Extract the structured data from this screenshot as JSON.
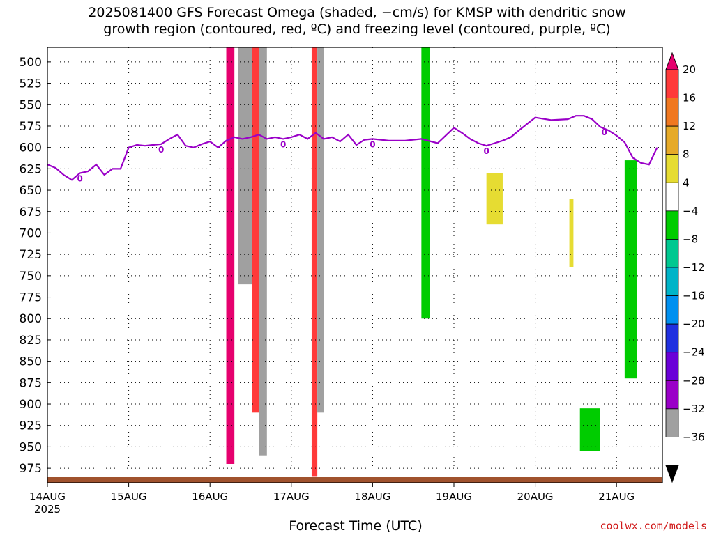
{
  "chart_data": {
    "type": "heatmap",
    "title": "2025081400 GFS Forecast Omega (shaded, −cm/s) for KMSP with dendritic snow\ngrowth region (contoured, red, ºC) and freezing level (contoured, purple, ºC)",
    "xlabel": "Forecast Time (UTC)",
    "x_ticks": [
      "14AUG",
      "15AUG",
      "16AUG",
      "17AUG",
      "18AUG",
      "19AUG",
      "20AUG",
      "21AUG"
    ],
    "x_tick_sublabel": "2025",
    "x_range_days": [
      0,
      7.55
    ],
    "y_ticks": [
      500,
      525,
      550,
      575,
      600,
      625,
      650,
      675,
      700,
      725,
      750,
      775,
      800,
      825,
      850,
      875,
      900,
      925,
      950,
      975
    ],
    "y_range_hpa": [
      483,
      992
    ],
    "grid": true,
    "colorbar": {
      "labels": [
        "20",
        "16",
        "12",
        "8",
        "4",
        "−4",
        "−8",
        "−12",
        "−16",
        "−20",
        "−24",
        "−28",
        "−32",
        "−36"
      ],
      "colors": [
        "#000000",
        "#a0a0a0",
        "#9a00c8",
        "#6a00d8",
        "#2030e0",
        "#0090f0",
        "#00b4c8",
        "#00c890",
        "#00cc00",
        "#ffffff",
        "#e6dc32",
        "#e6aa28",
        "#f07820",
        "#ff3a3a",
        "#e6006e"
      ]
    },
    "freezing_level": {
      "label": "0",
      "color": "#9a00c8",
      "x_days": [
        0,
        0.1,
        0.2,
        0.3,
        0.4,
        0.5,
        0.6,
        0.7,
        0.8,
        0.9,
        1.0,
        1.1,
        1.2,
        1.3,
        1.4,
        1.5,
        1.6,
        1.7,
        1.8,
        1.9,
        2.0,
        2.1,
        2.2,
        2.3,
        2.4,
        2.5,
        2.6,
        2.7,
        2.8,
        2.9,
        3.0,
        3.1,
        3.2,
        3.3,
        3.4,
        3.5,
        3.6,
        3.7,
        3.8,
        3.9,
        4.0,
        4.2,
        4.4,
        4.6,
        4.8,
        5.0,
        5.1,
        5.2,
        5.3,
        5.4,
        5.5,
        5.6,
        5.7,
        5.8,
        6.0,
        6.2,
        6.4,
        6.5,
        6.6,
        6.7,
        6.8,
        6.9,
        7.0,
        7.1,
        7.2,
        7.3,
        7.4,
        7.5
      ],
      "pressure_hpa": [
        620,
        624,
        632,
        638,
        630,
        628,
        620,
        632,
        625,
        625,
        600,
        597,
        598,
        597,
        596,
        590,
        585,
        598,
        600,
        596,
        593,
        600,
        592,
        588,
        590,
        588,
        585,
        590,
        588,
        590,
        588,
        585,
        590,
        583,
        590,
        588,
        593,
        585,
        597,
        591,
        590,
        592,
        592,
        590,
        595,
        577,
        583,
        590,
        595,
        598,
        595,
        592,
        588,
        580,
        565,
        568,
        567,
        563,
        563,
        567,
        576,
        580,
        586,
        594,
        612,
        618,
        620,
        600
      ]
    },
    "omega_bands": [
      {
        "x0": 1.0,
        "x1": 1.08,
        "p0": 483,
        "p1": 990,
        "value": 2
      },
      {
        "x0": 2.35,
        "x1": 2.52,
        "p0": 483,
        "p1": 760,
        "value": -36
      },
      {
        "x0": 2.2,
        "x1": 2.3,
        "p0": 483,
        "p1": 970,
        "value": 20
      },
      {
        "x0": 2.52,
        "x1": 2.6,
        "p0": 483,
        "p1": 910,
        "value": 18
      },
      {
        "x0": 2.6,
        "x1": 2.7,
        "p0": 483,
        "p1": 960,
        "value": -36
      },
      {
        "x0": 3.25,
        "x1": 3.32,
        "p0": 483,
        "p1": 985,
        "value": 18
      },
      {
        "x0": 3.32,
        "x1": 3.4,
        "p0": 483,
        "p1": 910,
        "value": -36
      },
      {
        "x0": 4.6,
        "x1": 4.7,
        "p0": 483,
        "p1": 800,
        "value": -6
      },
      {
        "x0": 6.42,
        "x1": 6.47,
        "p0": 660,
        "p1": 740,
        "value": 6
      },
      {
        "x0": 6.55,
        "x1": 6.8,
        "p0": 905,
        "p1": 955,
        "value": -6
      },
      {
        "x0": 7.1,
        "x1": 7.25,
        "p0": 615,
        "p1": 870,
        "value": -8
      },
      {
        "x0": 5.4,
        "x1": 5.6,
        "p0": 630,
        "p1": 690,
        "value": 6
      }
    ]
  },
  "footer": {
    "credit": "coolwx.com/models"
  }
}
